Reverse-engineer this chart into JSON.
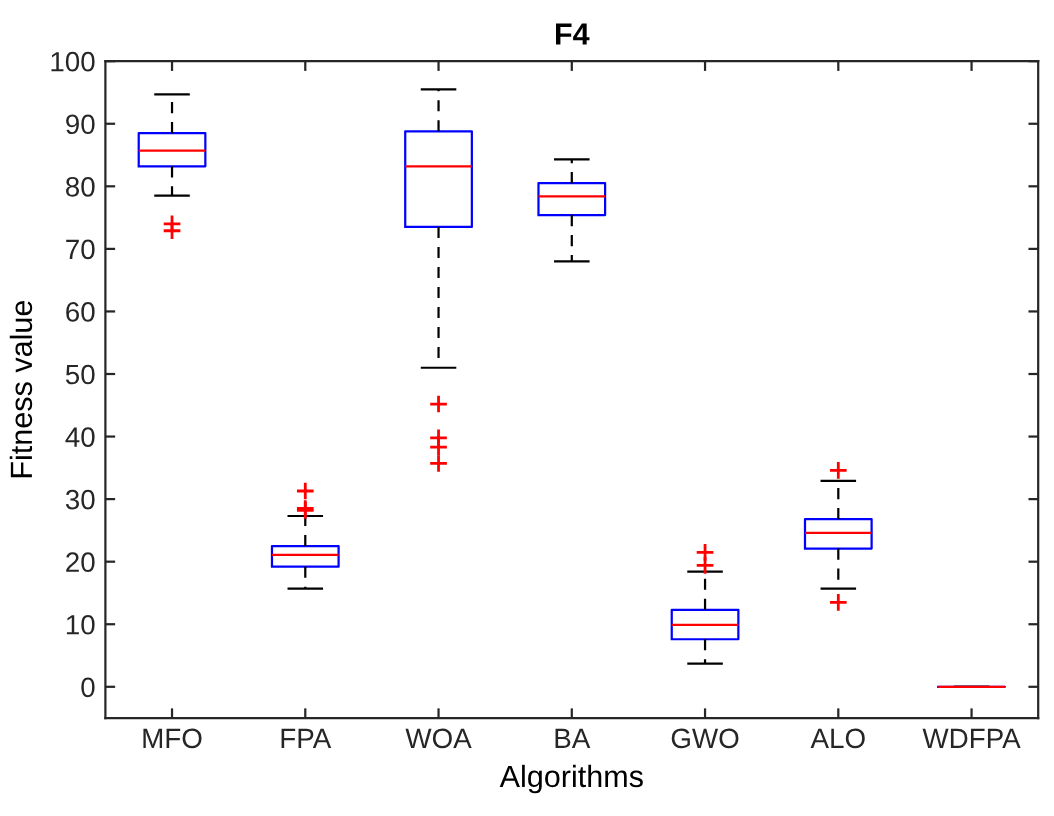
{
  "chart_data": {
    "type": "box",
    "title": "F4",
    "xlabel": "Algorithms",
    "ylabel": "Fitness value",
    "categories": [
      "MFO",
      "FPA",
      "WOA",
      "BA",
      "GWO",
      "ALO",
      "WDFPA"
    ],
    "boxes": [
      {
        "low": 78.5,
        "q1": 83.2,
        "median": 85.7,
        "q3": 88.5,
        "high": 94.7,
        "outliers": [
          74,
          72.9
        ]
      },
      {
        "low": 15.7,
        "q1": 19.2,
        "median": 21.1,
        "q3": 22.5,
        "high": 27.3,
        "outliers": [
          31.3,
          28.5,
          28.2
        ]
      },
      {
        "low": 51,
        "q1": 73.5,
        "median": 83.2,
        "q3": 88.8,
        "high": 95.5,
        "outliers": [
          45.2,
          39.8,
          38.3,
          35.7
        ]
      },
      {
        "low": 68,
        "q1": 75.4,
        "median": 78.4,
        "q3": 80.5,
        "high": 84.3
      },
      {
        "low": 3.7,
        "q1": 7.6,
        "median": 9.9,
        "q3": 12.3,
        "high": 18.4,
        "outliers": [
          21.5,
          19.4
        ]
      },
      {
        "low": 15.7,
        "q1": 22.1,
        "median": 24.6,
        "q3": 26.8,
        "high": 32.9,
        "outliers": [
          34.6,
          13.5
        ]
      },
      {
        "low": 0,
        "q1": 0,
        "median": 0,
        "q3": 0,
        "high": 0
      }
    ],
    "color": "#0000ff",
    "ylim": [
      -5,
      100
    ],
    "yticks": [
      0,
      10,
      20,
      30,
      40,
      50,
      60,
      70,
      80,
      90,
      100
    ],
    "grid": false
  }
}
